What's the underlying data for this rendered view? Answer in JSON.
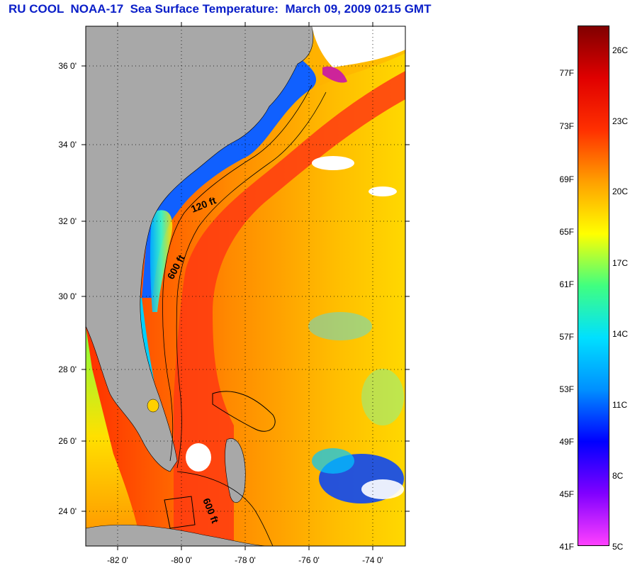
{
  "title": "RU COOL  NOAA-17  Sea Surface Temperature:  March 09, 2009 0215 GMT",
  "map": {
    "lat_labels": [
      "36 0'",
      "34 0'",
      "32 0'",
      "30 0'",
      "28 0'",
      "26 0'",
      "24 0'"
    ],
    "lon_labels": [
      "-82 0'",
      "-80 0'",
      "-78 0'",
      "-76 0'",
      "-74 0'"
    ],
    "isobath_labels": [
      "120 ft",
      "600 ft",
      "600 ft"
    ],
    "land_color": "#a8a8a8",
    "cloud_color": "#ffffff"
  },
  "colorbar": {
    "fahrenheit_labels": [
      "77F",
      "73F",
      "69F",
      "65F",
      "61F",
      "57F",
      "53F",
      "49F",
      "45F",
      "41F"
    ],
    "celsius_labels": [
      "26C",
      "23C",
      "20C",
      "17C",
      "14C",
      "11C",
      "8C",
      "5C"
    ],
    "colors": [
      "#ff40ff",
      "#8000ff",
      "#0000ff",
      "#0090ff",
      "#00e0ff",
      "#40ff80",
      "#ffff00",
      "#ffa000",
      "#ff3000",
      "#e00000",
      "#800000"
    ]
  }
}
